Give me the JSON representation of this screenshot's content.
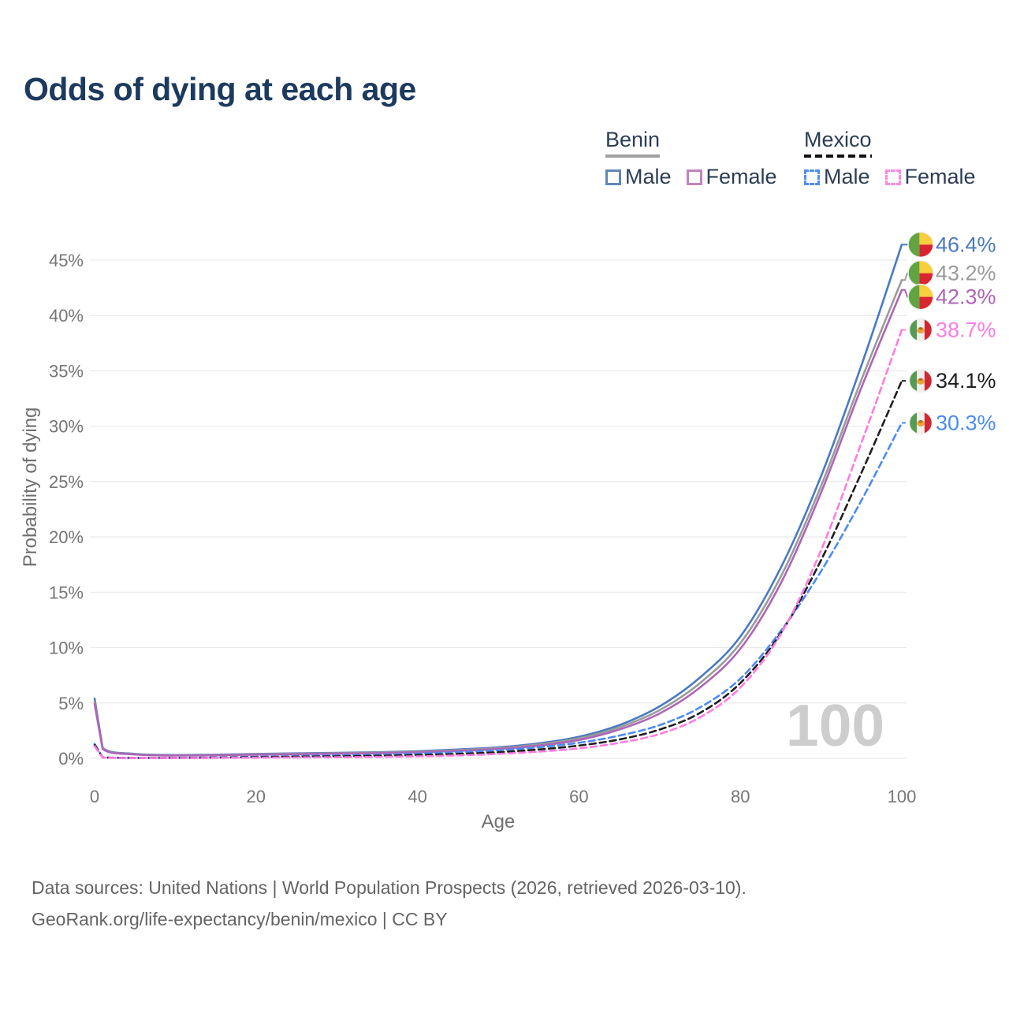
{
  "title": "Odds of dying at each age",
  "watermark": "100",
  "legend": {
    "groups": [
      {
        "country": "Benin",
        "line_color": "#a0a0a0",
        "dashed": false,
        "items": [
          {
            "label": "Male",
            "color": "#6186bb",
            "dashed": false
          },
          {
            "label": "Female",
            "color": "#c283bd",
            "dashed": false
          }
        ]
      },
      {
        "country": "Mexico",
        "line_color": "#111111",
        "dashed": true,
        "items": [
          {
            "label": "Male",
            "color": "#4f8df5",
            "dashed": true
          },
          {
            "label": "Female",
            "color": "#ff87e3",
            "dashed": true
          }
        ]
      }
    ]
  },
  "footer": {
    "line1": "Data sources: United Nations | World Population Prospects (2026, retrieved 2026-03-10).",
    "line2": "GeoRank.org/life-expectancy/benin/mexico | CC BY"
  },
  "chart_data": {
    "type": "line",
    "title": "Odds of dying at each age",
    "xlabel": "Age",
    "ylabel": "Probability of dying",
    "xlim": [
      0,
      100
    ],
    "ylim": [
      0,
      46.5
    ],
    "xticks": [
      0,
      20,
      40,
      60,
      80,
      100
    ],
    "yticks": [
      0,
      5,
      10,
      15,
      20,
      25,
      30,
      35,
      40,
      45
    ],
    "grid": true,
    "legend_position": "top-right",
    "hover_age": 100,
    "series": [
      {
        "id": "benin-male",
        "name": "Benin Male",
        "country": "Benin",
        "sex": "Male",
        "color": "#4a7ac2",
        "dashed": false,
        "flag": "benin",
        "end_label": "46.4%",
        "points": [
          [
            0,
            5.4
          ],
          [
            1,
            0.95
          ],
          [
            5,
            0.4
          ],
          [
            10,
            0.3
          ],
          [
            15,
            0.33
          ],
          [
            20,
            0.4
          ],
          [
            25,
            0.45
          ],
          [
            30,
            0.5
          ],
          [
            35,
            0.55
          ],
          [
            40,
            0.65
          ],
          [
            45,
            0.8
          ],
          [
            50,
            1.0
          ],
          [
            55,
            1.35
          ],
          [
            60,
            1.95
          ],
          [
            65,
            3.0
          ],
          [
            70,
            4.7
          ],
          [
            75,
            7.3
          ],
          [
            80,
            11.0
          ],
          [
            85,
            17.2
          ],
          [
            90,
            25.5
          ],
          [
            95,
            35.5
          ],
          [
            100,
            46.4
          ]
        ]
      },
      {
        "id": "benin-total",
        "name": "Benin Total",
        "country": "Benin",
        "sex": "Both",
        "color": "#9b9b9b",
        "dashed": false,
        "flag": "benin",
        "end_label": "43.2%",
        "points": [
          [
            0,
            5.1
          ],
          [
            1,
            0.9
          ],
          [
            5,
            0.37
          ],
          [
            10,
            0.27
          ],
          [
            15,
            0.3
          ],
          [
            20,
            0.36
          ],
          [
            25,
            0.41
          ],
          [
            30,
            0.46
          ],
          [
            35,
            0.51
          ],
          [
            40,
            0.6
          ],
          [
            45,
            0.73
          ],
          [
            50,
            0.92
          ],
          [
            55,
            1.25
          ],
          [
            60,
            1.8
          ],
          [
            65,
            2.8
          ],
          [
            70,
            4.35
          ],
          [
            75,
            6.8
          ],
          [
            80,
            10.4
          ],
          [
            85,
            16.4
          ],
          [
            90,
            24.6
          ],
          [
            95,
            34.2
          ],
          [
            100,
            43.2
          ]
        ]
      },
      {
        "id": "benin-female",
        "name": "Benin Female",
        "country": "Benin",
        "sex": "Female",
        "color": "#ae65b6",
        "dashed": false,
        "flag": "benin",
        "end_label": "42.3%",
        "points": [
          [
            0,
            4.9
          ],
          [
            1,
            0.85
          ],
          [
            5,
            0.35
          ],
          [
            10,
            0.25
          ],
          [
            15,
            0.28
          ],
          [
            20,
            0.33
          ],
          [
            25,
            0.37
          ],
          [
            30,
            0.42
          ],
          [
            35,
            0.47
          ],
          [
            40,
            0.55
          ],
          [
            45,
            0.67
          ],
          [
            50,
            0.85
          ],
          [
            55,
            1.15
          ],
          [
            60,
            1.65
          ],
          [
            65,
            2.6
          ],
          [
            70,
            4.05
          ],
          [
            75,
            6.4
          ],
          [
            80,
            9.9
          ],
          [
            85,
            15.8
          ],
          [
            90,
            24.0
          ],
          [
            95,
            33.5
          ],
          [
            100,
            42.3
          ]
        ]
      },
      {
        "id": "mexico-male",
        "name": "Mexico Male",
        "country": "Mexico",
        "sex": "Male",
        "color": "#4c8bf5",
        "dashed": true,
        "flag": "mexico",
        "end_label": "30.3%",
        "points": [
          [
            0,
            1.3
          ],
          [
            1,
            0.09
          ],
          [
            5,
            0.04
          ],
          [
            10,
            0.05
          ],
          [
            15,
            0.08
          ],
          [
            20,
            0.14
          ],
          [
            25,
            0.2
          ],
          [
            30,
            0.26
          ],
          [
            35,
            0.32
          ],
          [
            40,
            0.42
          ],
          [
            45,
            0.55
          ],
          [
            50,
            0.72
          ],
          [
            55,
            1.0
          ],
          [
            60,
            1.4
          ],
          [
            65,
            2.05
          ],
          [
            70,
            3.0
          ],
          [
            75,
            4.6
          ],
          [
            80,
            7.2
          ],
          [
            85,
            11.5
          ],
          [
            90,
            16.9
          ],
          [
            95,
            23.3
          ],
          [
            100,
            30.3
          ]
        ]
      },
      {
        "id": "mexico-total",
        "name": "Mexico Total",
        "country": "Mexico",
        "sex": "Both",
        "color": "#1f1f1f",
        "dashed": true,
        "flag": "mexico",
        "end_label": "34.1%",
        "points": [
          [
            0,
            1.2
          ],
          [
            1,
            0.08
          ],
          [
            5,
            0.035
          ],
          [
            10,
            0.04
          ],
          [
            15,
            0.06
          ],
          [
            20,
            0.1
          ],
          [
            25,
            0.14
          ],
          [
            30,
            0.18
          ],
          [
            35,
            0.23
          ],
          [
            40,
            0.3
          ],
          [
            45,
            0.4
          ],
          [
            50,
            0.55
          ],
          [
            55,
            0.8
          ],
          [
            60,
            1.15
          ],
          [
            65,
            1.7
          ],
          [
            70,
            2.6
          ],
          [
            75,
            4.1
          ],
          [
            80,
            6.8
          ],
          [
            85,
            11.3
          ],
          [
            90,
            17.9
          ],
          [
            95,
            25.8
          ],
          [
            100,
            34.1
          ]
        ]
      },
      {
        "id": "mexico-female",
        "name": "Mexico Female",
        "country": "Mexico",
        "sex": "Female",
        "color": "#ff7ce1",
        "dashed": true,
        "flag": "mexico",
        "end_label": "38.7%",
        "points": [
          [
            0,
            1.1
          ],
          [
            1,
            0.07
          ],
          [
            5,
            0.03
          ],
          [
            10,
            0.03
          ],
          [
            15,
            0.04
          ],
          [
            20,
            0.06
          ],
          [
            25,
            0.08
          ],
          [
            30,
            0.1
          ],
          [
            35,
            0.13
          ],
          [
            40,
            0.18
          ],
          [
            45,
            0.26
          ],
          [
            50,
            0.4
          ],
          [
            55,
            0.6
          ],
          [
            60,
            0.9
          ],
          [
            65,
            1.4
          ],
          [
            70,
            2.2
          ],
          [
            75,
            3.7
          ],
          [
            80,
            6.4
          ],
          [
            85,
            11.2
          ],
          [
            90,
            18.8
          ],
          [
            95,
            28.5
          ],
          [
            100,
            38.7
          ]
        ]
      }
    ]
  }
}
